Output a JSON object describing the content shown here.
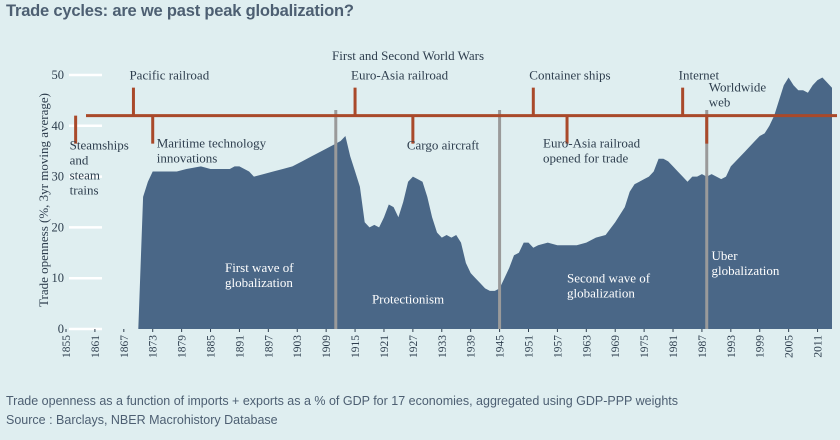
{
  "header": {
    "title": "Trade cycles: are we past peak globalization?"
  },
  "footer": {
    "note": "Trade openness as a function of imports + exports as a % of GDP for 17 economies, aggregated using GDP-PPP weights",
    "source": "Source : Barclays, NBER Macrohistory Database"
  },
  "colors": {
    "background": "#dfeef0",
    "area": "#4a6787",
    "timeline": "#a9492a",
    "divider": "#9a9a9a",
    "text": "#2e3e4e",
    "area_text": "#ffffff"
  },
  "chart_data": {
    "type": "area",
    "title": "Trade cycles: are we past peak globalization?",
    "ylabel": "Trade openness (%, 3yr moving average)",
    "xlabel": "",
    "xlim": [
      1855,
      2014
    ],
    "ylim": [
      0,
      50
    ],
    "yticks": [
      0,
      10,
      20,
      30,
      40,
      50
    ],
    "xtick_labels": [
      "1855",
      "1861",
      "1867",
      "1873",
      "1879",
      "1885",
      "1891",
      "1897",
      "1903",
      "1909",
      "1915",
      "1921",
      "1927",
      "1933",
      "1939",
      "1945",
      "1951",
      "1957",
      "1963",
      "1969",
      "1975",
      "1981",
      "1987",
      "1993",
      "1999",
      "2005",
      "2011"
    ],
    "series": [
      {
        "name": "Trade openness",
        "x": [
          1870,
          1871,
          1872,
          1873,
          1875,
          1878,
          1880,
          1883,
          1885,
          1887,
          1889,
          1890,
          1891,
          1893,
          1894,
          1896,
          1898,
          1900,
          1902,
          1904,
          1906,
          1908,
          1910,
          1911,
          1912,
          1913,
          1914,
          1915,
          1916,
          1917,
          1918,
          1919,
          1920,
          1921,
          1922,
          1923,
          1924,
          1925,
          1926,
          1927,
          1928,
          1929,
          1930,
          1931,
          1932,
          1933,
          1934,
          1935,
          1936,
          1937,
          1938,
          1939,
          1940,
          1941,
          1942,
          1943,
          1944,
          1945,
          1946,
          1947,
          1948,
          1949,
          1950,
          1951,
          1952,
          1953,
          1955,
          1957,
          1959,
          1961,
          1963,
          1965,
          1967,
          1969,
          1971,
          1972,
          1973,
          1974,
          1975,
          1976,
          1977,
          1978,
          1979,
          1980,
          1981,
          1982,
          1983,
          1984,
          1985,
          1986,
          1987,
          1988,
          1989,
          1990,
          1991,
          1992,
          1993,
          1994,
          1995,
          1996,
          1997,
          1998,
          1999,
          2000,
          2001,
          2002,
          2003,
          2004,
          2005,
          2006,
          2007,
          2008,
          2009,
          2010,
          2011,
          2012,
          2013,
          2014
        ],
        "values": [
          0,
          26,
          29,
          31,
          31,
          31,
          31.5,
          32,
          31.5,
          31.5,
          31.5,
          32,
          32,
          31,
          30,
          30.5,
          31,
          31.5,
          32,
          33,
          34,
          35,
          36,
          36.5,
          37,
          38,
          34,
          31,
          28,
          21,
          20,
          20.5,
          20,
          22,
          24.5,
          24,
          22,
          25,
          29,
          30,
          29.5,
          29,
          26,
          22,
          19,
          18,
          18.5,
          18,
          18.5,
          17,
          13,
          11,
          10,
          9,
          8,
          7.5,
          7.5,
          8,
          10,
          12,
          14.5,
          15,
          17,
          17,
          16,
          16.5,
          17,
          16.5,
          16.5,
          16.5,
          17,
          18,
          18.5,
          21,
          24,
          27,
          28.5,
          29,
          29.5,
          30,
          31,
          33.5,
          33.5,
          33,
          32,
          31,
          30,
          29,
          30,
          30,
          30.5,
          30,
          30.5,
          30,
          29.5,
          30,
          32,
          33,
          34,
          35,
          36,
          37,
          38,
          38.5,
          40,
          42,
          45,
          48,
          49.5,
          48,
          47,
          47,
          46.5,
          48,
          49,
          49.5,
          48.5,
          47.5
        ]
      }
    ],
    "dividers": [
      1911,
      1945,
      1988
    ],
    "timeline_level": 42,
    "events": [
      {
        "year": 1857,
        "label": "Steamships and steam trains",
        "side": "below"
      },
      {
        "year": 1869,
        "label": "Pacific railroad",
        "side": "above"
      },
      {
        "year": 1873,
        "label": "Maritime technology innovations",
        "side": "below"
      },
      {
        "year": 1915,
        "label": "Euro-Asia railroad",
        "side": "above"
      },
      {
        "year": 1927,
        "label": "Cargo aircraft",
        "side": "below"
      },
      {
        "year": 1952,
        "label": "Container ships",
        "side": "above"
      },
      {
        "year": 1959,
        "label": "Euro-Asia railroad opened for trade",
        "side": "below"
      },
      {
        "year": 1983,
        "label": "Internet",
        "side": "above"
      },
      {
        "year": 1988,
        "label": "Worldwide web",
        "side": "below"
      }
    ],
    "annotations": [
      {
        "text": "First and Second World Wars",
        "x": 1926,
        "y": 53
      },
      {
        "text": "First wave of globalization",
        "x": 1888,
        "y": 10
      },
      {
        "text": "Protectionism",
        "x": 1926,
        "y": 5
      },
      {
        "text": "Second wave of globalization",
        "x": 1959,
        "y": 8
      },
      {
        "text": "Uber globalization",
        "x": 1989,
        "y": 12
      }
    ]
  }
}
